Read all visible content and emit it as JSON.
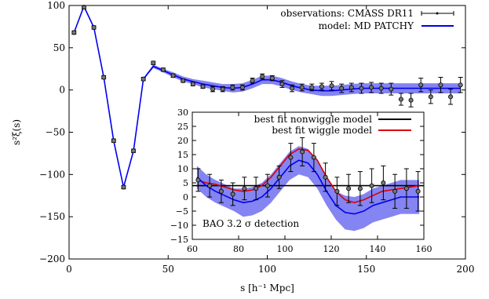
{
  "chart_data": [
    {
      "type": "scatter",
      "xlabel": "s [h⁻¹ Mpc]",
      "ylabel": "s²ξ(s)",
      "xlim": [
        0,
        200
      ],
      "ylim": [
        -200,
        100
      ],
      "xticks": [
        "0",
        "50",
        "100",
        "150",
        "200"
      ],
      "yticks": [
        "100",
        "50",
        "0",
        "−50",
        "−100",
        "−150",
        "−200"
      ],
      "legend": {
        "placement": "top-right"
      },
      "series": [
        {
          "name": "observations: CMASS DR11",
          "kind": "points-with-errorbars",
          "color": "#000000",
          "x": [
            2.5,
            7.5,
            12.5,
            17.5,
            22.5,
            27.5,
            32.5,
            37.5,
            42.5,
            47.5,
            52.5,
            57.5,
            62.5,
            67.5,
            72.5,
            77.5,
            82.5,
            87.5,
            92.5,
            97.5,
            102.5,
            107.5,
            112.5,
            117.5,
            122.5,
            127.5,
            132.5,
            137.5,
            142.5,
            147.5,
            152.5,
            157.5,
            162.5,
            167.5,
            172.5,
            177.5,
            182.5,
            187.5,
            192.5,
            197.5
          ],
          "y": [
            68,
            98,
            74,
            15,
            -60,
            -115,
            -72,
            13,
            32,
            24,
            17,
            11,
            7,
            4,
            1,
            1,
            3,
            3,
            11,
            16,
            14,
            7,
            2,
            3,
            3,
            4,
            5,
            2,
            3,
            2,
            3,
            2,
            1,
            -11,
            -12,
            6,
            -8,
            6,
            -8,
            6
          ],
          "err": [
            2,
            2,
            2,
            2,
            2,
            2,
            2,
            2,
            2,
            2,
            2,
            2,
            2,
            2,
            3,
            3,
            3,
            3,
            3,
            3,
            3,
            4,
            4,
            4,
            4,
            4,
            5,
            5,
            5,
            6,
            6,
            6,
            7,
            7,
            8,
            8,
            8,
            9,
            9,
            9
          ]
        },
        {
          "name": "model: MD PATCHY",
          "kind": "line-with-band",
          "color": "#0000ee",
          "band_color": "#6f6ff0",
          "x": [
            2.5,
            7.5,
            12.5,
            17.5,
            22.5,
            27.5,
            32.5,
            37.5,
            42.5,
            47.5,
            52.5,
            57.5,
            62.5,
            67.5,
            72.5,
            77.5,
            82.5,
            87.5,
            92.5,
            97.5,
            102.5,
            107.5,
            112.5,
            117.5,
            122.5,
            127.5,
            132.5,
            137.5,
            142.5,
            147.5,
            152.5,
            157.5,
            162.5,
            167.5,
            172.5,
            177.5,
            182.5,
            187.5,
            192.5,
            197.5
          ],
          "y": [
            68,
            99,
            74,
            15,
            -60,
            -115,
            -72,
            13,
            28,
            23,
            18,
            13,
            10,
            7,
            5,
            3,
            2,
            3,
            7,
            12,
            12,
            9,
            5,
            2,
            0,
            -1,
            -1,
            0,
            1,
            2,
            2,
            2,
            2,
            2,
            2,
            2,
            2,
            2,
            2,
            2
          ],
          "band_halfwidth": [
            1,
            1,
            1,
            1,
            1,
            1,
            1,
            1,
            2,
            2,
            3,
            3,
            3,
            4,
            4,
            4,
            5,
            5,
            5,
            5,
            5,
            5,
            5,
            5,
            5,
            6,
            6,
            6,
            6,
            6,
            6,
            6,
            6,
            6,
            6,
            6,
            6,
            6,
            6,
            6
          ]
        }
      ]
    },
    {
      "type": "line",
      "xlim": [
        60,
        160
      ],
      "ylim": [
        -15,
        30
      ],
      "xticks": [
        "60",
        "80",
        "100",
        "120",
        "140",
        "160"
      ],
      "yticks": [
        "30",
        "25",
        "20",
        "15",
        "10",
        "5",
        "0",
        "−5",
        "−10",
        "−15"
      ],
      "legend": {
        "placement": "top-right"
      },
      "annotation": "BAO 3.2 σ detection",
      "series": [
        {
          "name": "best fit nonwiggle model",
          "kind": "line",
          "color": "#000000",
          "x": [
            60,
            80,
            100,
            120,
            140,
            160
          ],
          "y": [
            4,
            4,
            4,
            4,
            4,
            4
          ]
        },
        {
          "name": "best fit wiggle model",
          "kind": "line",
          "color": "#dd0000",
          "x": [
            62,
            66,
            70,
            74,
            78,
            82,
            86,
            90,
            94,
            98,
            102,
            106,
            110,
            114,
            118,
            122,
            126,
            130,
            134,
            138,
            142,
            146,
            150,
            154,
            158
          ],
          "y": [
            6,
            5,
            4.5,
            3.5,
            2.5,
            2,
            2.5,
            4,
            7,
            11,
            15,
            17,
            16.5,
            13,
            7,
            2,
            -1,
            -2,
            -1,
            0.5,
            2,
            2.5,
            3,
            3.5,
            4
          ]
        },
        {
          "name": "",
          "kind": "line-with-band",
          "color": "#0000ee",
          "band_color": "#6f6ff0",
          "x": [
            62,
            66,
            70,
            74,
            78,
            82,
            86,
            90,
            94,
            98,
            102,
            106,
            110,
            114,
            118,
            122,
            126,
            130,
            134,
            138,
            142,
            146,
            150,
            154,
            158
          ],
          "y": [
            7,
            4,
            2,
            0.5,
            -1,
            -2,
            -1.5,
            0,
            3,
            7,
            11,
            13,
            12,
            8,
            2,
            -3,
            -5.5,
            -6,
            -5,
            -3,
            -2,
            -1,
            0,
            0,
            0
          ],
          "band_halfwidth": [
            4,
            4,
            4,
            4,
            4,
            5,
            5,
            5,
            5,
            5,
            5,
            5,
            5,
            5,
            5,
            5,
            6,
            6,
            6,
            6,
            6,
            6,
            6,
            6,
            6
          ]
        },
        {
          "name": "",
          "kind": "points-with-errorbars",
          "color": "#000000",
          "x": [
            62.5,
            67.5,
            72.5,
            77.5,
            82.5,
            87.5,
            92.5,
            97.5,
            102.5,
            107.5,
            112.5,
            117.5,
            122.5,
            127.5,
            132.5,
            137.5,
            142.5,
            147.5,
            152.5,
            157.5
          ],
          "y": [
            6,
            4,
            2,
            1,
            3,
            3,
            4,
            7,
            14,
            16,
            14,
            7,
            2,
            3,
            3,
            4,
            5,
            2,
            3,
            2
          ],
          "err": [
            4,
            4,
            4,
            4,
            4,
            4,
            4,
            4,
            5,
            5,
            5,
            5,
            5,
            5,
            6,
            6,
            6,
            6,
            7,
            7
          ]
        }
      ]
    }
  ]
}
